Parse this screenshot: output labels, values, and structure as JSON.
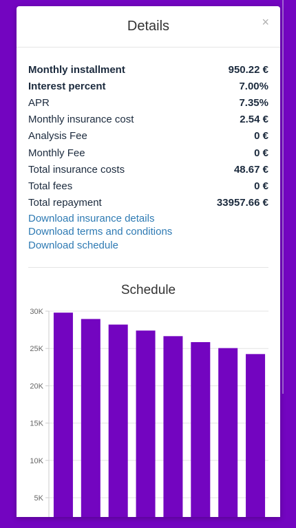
{
  "modal": {
    "title": "Details",
    "close_glyph": "×"
  },
  "details": [
    {
      "label": "Monthly installment",
      "value": "950.22 €",
      "bold_label": true
    },
    {
      "label": "Interest percent",
      "value": "7.00%",
      "bold_label": true
    },
    {
      "label": "APR",
      "value": "7.35%",
      "bold_label": false
    },
    {
      "label": "Monthly insurance cost",
      "value": "2.54 €",
      "bold_label": false
    },
    {
      "label": "Analysis Fee",
      "value": "0 €",
      "bold_label": false
    },
    {
      "label": "Monthly Fee",
      "value": "0 €",
      "bold_label": false
    },
    {
      "label": "Total insurance costs",
      "value": "48.67 €",
      "bold_label": false
    },
    {
      "label": "Total fees",
      "value": "0 €",
      "bold_label": false
    },
    {
      "label": "Total repayment",
      "value": "33957.66 €",
      "bold_label": false
    }
  ],
  "links": {
    "insurance": "Download insurance details",
    "terms": "Download terms and conditions",
    "schedule": "Download schedule"
  },
  "schedule": {
    "title": "Schedule"
  },
  "colors": {
    "background": "#7305c0",
    "bar": "#7305c0",
    "link": "#2e7ab3"
  },
  "chart_data": {
    "type": "bar",
    "title": "Schedule",
    "y_ticks": [
      "30K",
      "25K",
      "20K",
      "15K",
      "10K",
      "5K"
    ],
    "y_tick_values": [
      30000,
      25000,
      20000,
      15000,
      10000,
      5000
    ],
    "ylim": [
      0,
      30000
    ],
    "grid": true,
    "values": [
      29800,
      28950,
      28200,
      27400,
      26650,
      25850,
      25050,
      24250
    ]
  }
}
